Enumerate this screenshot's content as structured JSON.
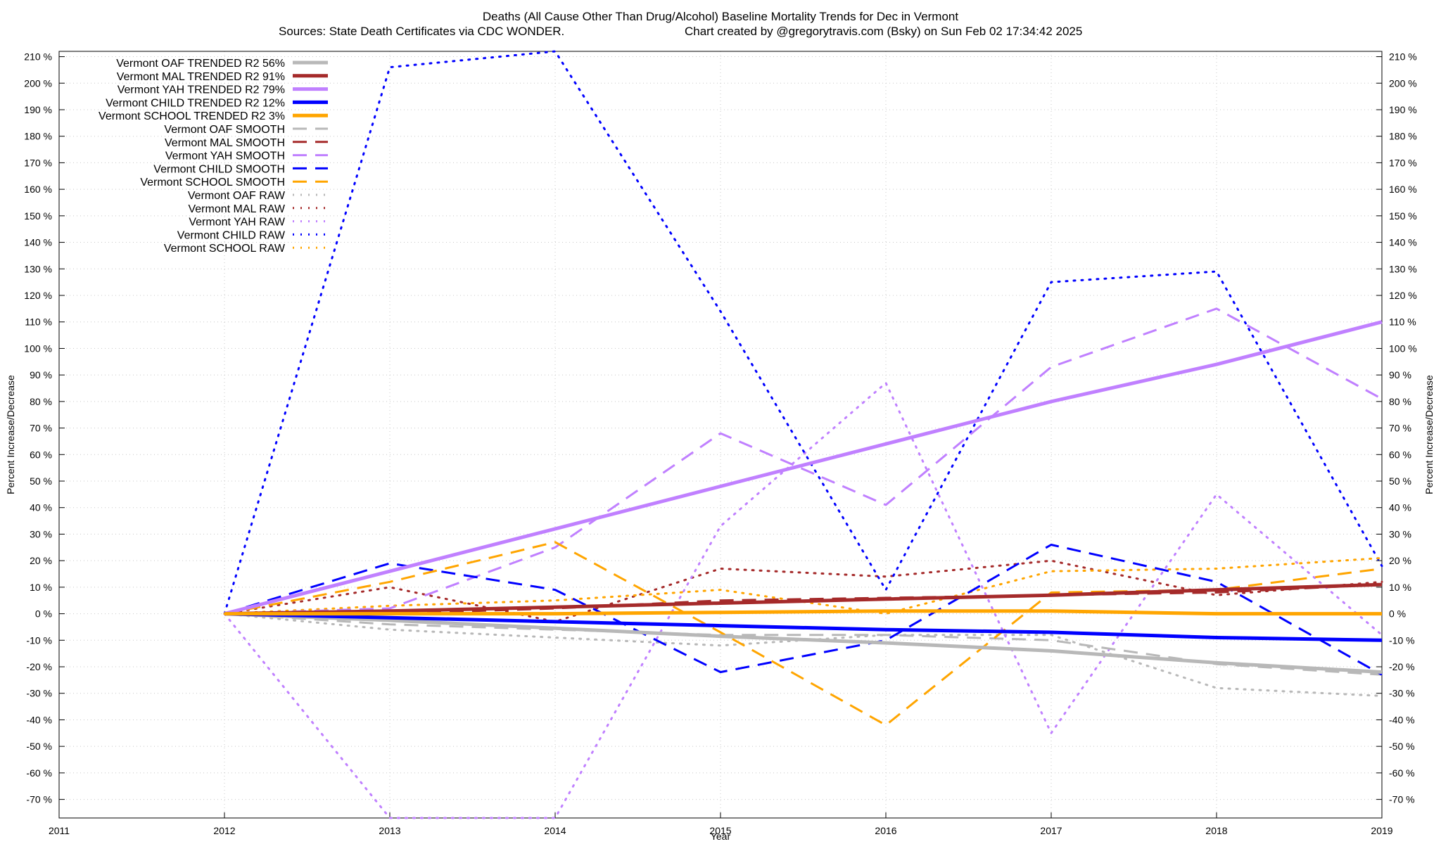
{
  "chart_data": {
    "type": "line",
    "title": "Deaths (All Cause Other Than Drug/Alcohol)  Baseline Mortality Trends for Dec in Vermont",
    "subtitle_left": "Sources: State Death Certificates via CDC WONDER.",
    "subtitle_right": "Chart created by @gregorytravis.com (Bsky) on Sun Feb 02 17:34:42 2025",
    "xlabel": "Year",
    "ylabel": "Percent Increase/Decrease",
    "xlim": [
      2011,
      2019
    ],
    "ylim": [
      -77,
      212
    ],
    "x_ticks": [
      "2011",
      "2012",
      "2013",
      "2014",
      "2015",
      "2016",
      "2017",
      "2018",
      "2019"
    ],
    "y_ticks": [
      210,
      200,
      190,
      180,
      170,
      160,
      150,
      140,
      130,
      120,
      110,
      100,
      90,
      80,
      70,
      60,
      50,
      40,
      30,
      20,
      10,
      0,
      -10,
      -20,
      -30,
      -40,
      -50,
      -60,
      -70
    ],
    "y_tick_suffix": " %",
    "colors": {
      "oaf": "#b8b8b8",
      "mal": "#a52a2a",
      "yah": "#c080ff",
      "child": "#0000ff",
      "school": "#ffa500"
    },
    "series": [
      {
        "name": "Vermont OAF TRENDED R2",
        "r2": "56%",
        "group": "oaf",
        "style": "trend",
        "x": [
          2012,
          2013,
          2014,
          2015,
          2016,
          2017,
          2018,
          2019
        ],
        "values": [
          0,
          -2.5,
          -5.5,
          -8.5,
          -11,
          -14,
          -18.5,
          -22
        ]
      },
      {
        "name": "Vermont MAL TRENDED R2",
        "r2": "91%",
        "group": "mal",
        "style": "trend",
        "x": [
          2012,
          2013,
          2014,
          2015,
          2016,
          2017,
          2018,
          2019
        ],
        "values": [
          0,
          1,
          2.5,
          4,
          5.5,
          7,
          9,
          11
        ]
      },
      {
        "name": "Vermont YAH TRENDED R2",
        "r2": "79%",
        "group": "yah",
        "style": "trend",
        "x": [
          2012,
          2013,
          2014,
          2015,
          2016,
          2017,
          2018,
          2019
        ],
        "values": [
          0,
          16,
          32,
          48,
          64,
          80,
          94,
          110
        ]
      },
      {
        "name": "Vermont CHILD TRENDED R2",
        "r2": "12%",
        "group": "child",
        "style": "trend",
        "x": [
          2012,
          2013,
          2014,
          2015,
          2016,
          2017,
          2018,
          2019
        ],
        "values": [
          0,
          -1.5,
          -3,
          -4.5,
          -6,
          -7,
          -9,
          -10
        ]
      },
      {
        "name": "Vermont SCHOOL TRENDED R2",
        "r2": "3%",
        "group": "school",
        "style": "trend",
        "x": [
          2012,
          2013,
          2014,
          2015,
          2016,
          2017,
          2018,
          2019
        ],
        "values": [
          0,
          0,
          0,
          0.5,
          1,
          1,
          0,
          0
        ]
      },
      {
        "name": "Vermont OAF SMOOTH",
        "group": "oaf",
        "style": "smooth",
        "x": [
          2012,
          2013,
          2014,
          2015,
          2016,
          2017,
          2018,
          2019
        ],
        "values": [
          0,
          -4,
          -6,
          -8,
          -8,
          -10,
          -19,
          -23
        ]
      },
      {
        "name": "Vermont MAL SMOOTH",
        "group": "mal",
        "style": "smooth",
        "x": [
          2012,
          2013,
          2014,
          2015,
          2016,
          2017,
          2018,
          2019
        ],
        "values": [
          0,
          0,
          2,
          5,
          6,
          7,
          8,
          11
        ]
      },
      {
        "name": "Vermont YAH SMOOTH",
        "group": "yah",
        "style": "smooth",
        "x": [
          2012,
          2013,
          2014,
          2015,
          2016,
          2017,
          2018,
          2019
        ],
        "values": [
          0,
          2,
          25,
          68,
          41,
          93,
          115,
          81
        ]
      },
      {
        "name": "Vermont CHILD SMOOTH",
        "group": "child",
        "style": "smooth",
        "x": [
          2012,
          2013,
          2014,
          2015,
          2016,
          2017,
          2018,
          2019
        ],
        "values": [
          0,
          19,
          9,
          -22,
          -10,
          26,
          12,
          -23
        ]
      },
      {
        "name": "Vermont SCHOOL SMOOTH",
        "group": "school",
        "style": "smooth",
        "x": [
          2012,
          2013,
          2014,
          2015,
          2016,
          2017,
          2018,
          2019
        ],
        "values": [
          0,
          12,
          27,
          -7,
          -42,
          8,
          9,
          17
        ]
      },
      {
        "name": "Vermont OAF RAW",
        "group": "oaf",
        "style": "raw",
        "x": [
          2012,
          2013,
          2014,
          2015,
          2016,
          2017,
          2018,
          2019
        ],
        "values": [
          0,
          -6,
          -9,
          -12,
          -8,
          -8,
          -28,
          -31
        ]
      },
      {
        "name": "Vermont MAL RAW",
        "group": "mal",
        "style": "raw",
        "x": [
          2012,
          2013,
          2014,
          2015,
          2016,
          2017,
          2018,
          2019
        ],
        "values": [
          0,
          10,
          -3,
          17,
          14,
          20,
          7,
          12
        ]
      },
      {
        "name": "Vermont YAH RAW",
        "group": "yah",
        "style": "raw",
        "x": [
          2012,
          2013,
          2014,
          2015,
          2016,
          2017,
          2018,
          2019
        ],
        "values": [
          0,
          -77,
          -77,
          33,
          87,
          -45,
          45,
          -8
        ]
      },
      {
        "name": "Vermont CHILD RAW",
        "group": "child",
        "style": "raw",
        "x": [
          2012,
          2013,
          2014,
          2015,
          2016,
          2017,
          2018,
          2019
        ],
        "values": [
          0,
          206,
          212,
          114,
          9,
          125,
          129,
          18
        ]
      },
      {
        "name": "Vermont SCHOOL RAW",
        "group": "school",
        "style": "raw",
        "x": [
          2012,
          2013,
          2014,
          2015,
          2016,
          2017,
          2018,
          2019
        ],
        "values": [
          0,
          3,
          5,
          9,
          0,
          16,
          17,
          21
        ]
      }
    ],
    "legend_position": "top-left",
    "grid": true
  }
}
